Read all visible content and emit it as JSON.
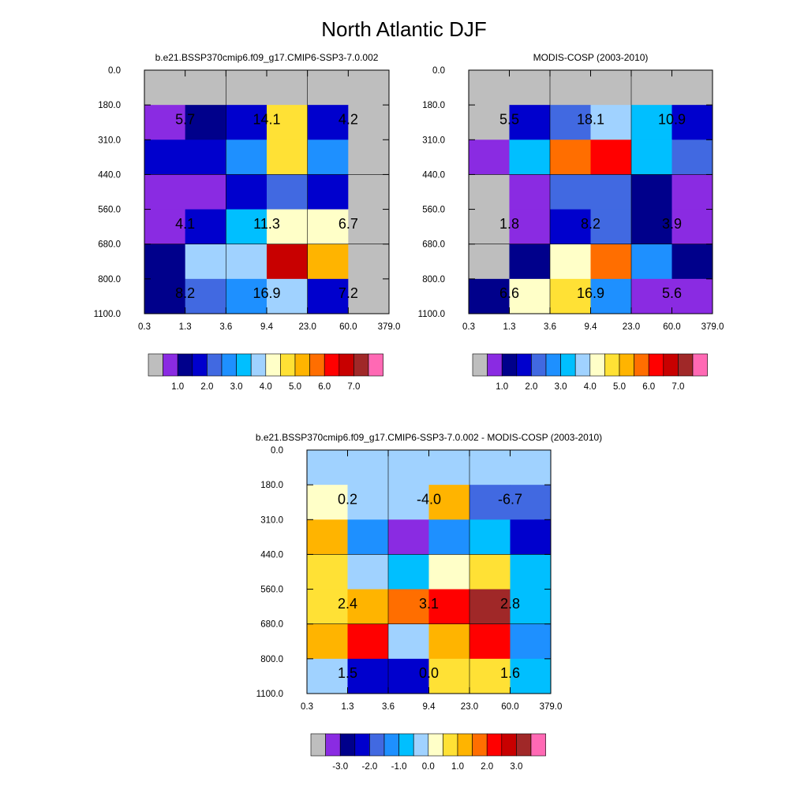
{
  "title": "North Atlantic DJF",
  "abs_colorbar": {
    "colors": [
      "#bebebe",
      "#8a2be2",
      "#00008b",
      "#0000cd",
      "#4169e1",
      "#1e90ff",
      "#00bfff",
      "#a0d2ff",
      "#ffffc8",
      "#ffe135",
      "#ffb400",
      "#ff6e00",
      "#ff0000",
      "#c80000",
      "#a02828",
      "#ff69b4"
    ],
    "ticks": [
      "1.0",
      "2.0",
      "3.0",
      "4.0",
      "5.0",
      "6.0",
      "7.0"
    ]
  },
  "diff_colorbar": {
    "colors": [
      "#bebebe",
      "#8a2be2",
      "#00008b",
      "#0000cd",
      "#4169e1",
      "#1e90ff",
      "#00bfff",
      "#a0d2ff",
      "#ffffc8",
      "#ffe135",
      "#ffb400",
      "#ff6e00",
      "#ff0000",
      "#c80000",
      "#a02828",
      "#ff69b4"
    ],
    "ticks": [
      "-3.0",
      "-2.0",
      "-1.0",
      "0.0",
      "1.0",
      "2.0",
      "3.0"
    ]
  },
  "chart_data": [
    {
      "type": "heatmap",
      "title": "b.e21.BSSP370cmip6.f09_g17.CMIP6-SSP3-7.0.002",
      "x_ticks": [
        "0.3",
        "1.3",
        "3.6",
        "9.4",
        "23.0",
        "60.0",
        "379.0"
      ],
      "y_ticks": [
        "0.0",
        "180.0",
        "310.0",
        "440.0",
        "560.0",
        "680.0",
        "800.0",
        "1100.0"
      ],
      "cells": [
        [
          "#bebebe",
          "#bebebe",
          "#bebebe",
          "#bebebe",
          "#bebebe",
          "#bebebe"
        ],
        [
          "#8a2be2",
          "#00008b",
          "#0000cd",
          "#ffe135",
          "#0000cd",
          "#bebebe"
        ],
        [
          "#0000cd",
          "#0000cd",
          "#1e90ff",
          "#ffe135",
          "#1e90ff",
          "#bebebe"
        ],
        [
          "#8a2be2",
          "#8a2be2",
          "#0000cd",
          "#4169e1",
          "#0000cd",
          "#bebebe"
        ],
        [
          "#8a2be2",
          "#0000cd",
          "#00bfff",
          "#ffffc8",
          "#ffffc8",
          "#bebebe"
        ],
        [
          "#00008b",
          "#a0d2ff",
          "#a0d2ff",
          "#c80000",
          "#ffb400",
          "#bebebe"
        ],
        [
          "#00008b",
          "#4169e1",
          "#1e90ff",
          "#a0d2ff",
          "#0000cd",
          "#bebebe"
        ]
      ],
      "annotations": [
        {
          "row": 1,
          "col": 0,
          "text": "5.7"
        },
        {
          "row": 1,
          "col": 1,
          "text": "14.1"
        },
        {
          "row": 1,
          "col": 2,
          "text": "4.2"
        },
        {
          "row": 2,
          "col": 0,
          "text": "4.1"
        },
        {
          "row": 2,
          "col": 1,
          "text": "11.3"
        },
        {
          "row": 2,
          "col": 2,
          "text": "6.7"
        },
        {
          "row": 3,
          "col": 0,
          "text": "8.2"
        },
        {
          "row": 3,
          "col": 1,
          "text": "16.9"
        },
        {
          "row": 3,
          "col": 2,
          "text": "7.2"
        }
      ]
    },
    {
      "type": "heatmap",
      "title": "MODIS-COSP (2003-2010)",
      "x_ticks": [
        "0.3",
        "1.3",
        "3.6",
        "9.4",
        "23.0",
        "60.0",
        "379.0"
      ],
      "y_ticks": [
        "0.0",
        "180.0",
        "310.0",
        "440.0",
        "560.0",
        "680.0",
        "800.0",
        "1100.0"
      ],
      "cells": [
        [
          "#bebebe",
          "#bebebe",
          "#bebebe",
          "#bebebe",
          "#bebebe",
          "#bebebe"
        ],
        [
          "#bebebe",
          "#0000cd",
          "#4169e1",
          "#a0d2ff",
          "#00bfff",
          "#0000cd"
        ],
        [
          "#8a2be2",
          "#00bfff",
          "#ff6e00",
          "#ff0000",
          "#00bfff",
          "#4169e1"
        ],
        [
          "#bebebe",
          "#8a2be2",
          "#4169e1",
          "#4169e1",
          "#00008b",
          "#8a2be2"
        ],
        [
          "#bebebe",
          "#8a2be2",
          "#0000cd",
          "#4169e1",
          "#00008b",
          "#8a2be2"
        ],
        [
          "#bebebe",
          "#00008b",
          "#ffffc8",
          "#ff6e00",
          "#1e90ff",
          "#00008b"
        ],
        [
          "#00008b",
          "#ffffc8",
          "#ffe135",
          "#1e90ff",
          "#8a2be2",
          "#8a2be2"
        ]
      ],
      "annotations": [
        {
          "row": 1,
          "col": 0,
          "text": "5.5"
        },
        {
          "row": 1,
          "col": 1,
          "text": "18.1"
        },
        {
          "row": 1,
          "col": 2,
          "text": "10.9"
        },
        {
          "row": 2,
          "col": 0,
          "text": "1.8"
        },
        {
          "row": 2,
          "col": 1,
          "text": "8.2"
        },
        {
          "row": 2,
          "col": 2,
          "text": "3.9"
        },
        {
          "row": 3,
          "col": 0,
          "text": "6.6"
        },
        {
          "row": 3,
          "col": 1,
          "text": "16.9"
        },
        {
          "row": 3,
          "col": 2,
          "text": "5.6"
        }
      ]
    },
    {
      "type": "heatmap",
      "title": "b.e21.BSSP370cmip6.f09_g17.CMIP6-SSP3-7.0.002 - MODIS-COSP (2003-2010)",
      "x_ticks": [
        "0.3",
        "1.3",
        "3.6",
        "9.4",
        "23.0",
        "60.0",
        "379.0"
      ],
      "y_ticks": [
        "0.0",
        "180.0",
        "310.0",
        "440.0",
        "560.0",
        "680.0",
        "800.0",
        "1100.0"
      ],
      "cells": [
        [
          "#a0d2ff",
          "#a0d2ff",
          "#a0d2ff",
          "#a0d2ff",
          "#a0d2ff",
          "#a0d2ff"
        ],
        [
          "#ffffc8",
          "#a0d2ff",
          "#a0d2ff",
          "#ffb400",
          "#4169e1",
          "#4169e1"
        ],
        [
          "#ffb400",
          "#1e90ff",
          "#8a2be2",
          "#1e90ff",
          "#00bfff",
          "#0000cd"
        ],
        [
          "#ffe135",
          "#a0d2ff",
          "#00bfff",
          "#ffffc8",
          "#ffe135",
          "#00bfff"
        ],
        [
          "#ffe135",
          "#ffb400",
          "#ff6e00",
          "#ff0000",
          "#a02828",
          "#00bfff"
        ],
        [
          "#ffb400",
          "#ff0000",
          "#a0d2ff",
          "#ffb400",
          "#ff0000",
          "#1e90ff"
        ],
        [
          "#a0d2ff",
          "#0000cd",
          "#0000cd",
          "#ffe135",
          "#ffe135",
          "#00bfff"
        ]
      ],
      "annotations": [
        {
          "row": 1,
          "col": 0,
          "text": "0.2"
        },
        {
          "row": 1,
          "col": 1,
          "text": "-4.0"
        },
        {
          "row": 1,
          "col": 2,
          "text": "-6.7"
        },
        {
          "row": 2,
          "col": 0,
          "text": "2.4"
        },
        {
          "row": 2,
          "col": 1,
          "text": "3.1"
        },
        {
          "row": 2,
          "col": 2,
          "text": "2.8"
        },
        {
          "row": 3,
          "col": 0,
          "text": "1.5"
        },
        {
          "row": 3,
          "col": 1,
          "text": "0.0"
        },
        {
          "row": 3,
          "col": 2,
          "text": "1.6"
        }
      ]
    }
  ]
}
